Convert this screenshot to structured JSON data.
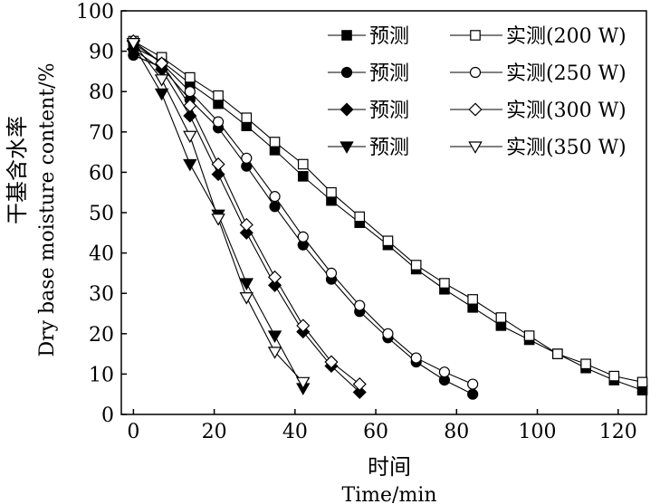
{
  "chart_data": {
    "type": "line",
    "title": "",
    "xlabel_cn": "时间",
    "xlabel": "Time/min",
    "ylabel_cn": "干基含水率",
    "ylabel": "Dry base moisture content/%",
    "xlim": [
      -3,
      127
    ],
    "ylim": [
      0,
      100
    ],
    "xticks": [
      "0",
      "20",
      "40",
      "60",
      "80",
      "100",
      "120"
    ],
    "yticks": [
      "0",
      "10",
      "20",
      "30",
      "40",
      "50",
      "60",
      "70",
      "80",
      "90",
      "100"
    ],
    "grid": false,
    "legend_position": "top-right",
    "series": [
      {
        "name": "预测",
        "kind": "predicted",
        "marker": "square-filled",
        "x": [
          0,
          7,
          14,
          21,
          28,
          35,
          42,
          49,
          56,
          63,
          70,
          77,
          84,
          91,
          98,
          105,
          112,
          119,
          126
        ],
        "y": [
          91,
          87.5,
          82,
          77,
          71.5,
          65.5,
          59,
          53,
          47.5,
          42,
          36,
          31,
          26.5,
          22,
          18.5,
          15,
          11.5,
          8.5,
          6
        ]
      },
      {
        "name": "实测(200 W)",
        "kind": "measured",
        "marker": "square-open",
        "x": [
          0,
          7,
          14,
          21,
          28,
          35,
          42,
          49,
          56,
          63,
          70,
          77,
          84,
          91,
          98,
          105,
          112,
          119,
          126
        ],
        "y": [
          92.5,
          88.5,
          83.5,
          79,
          73.5,
          67.5,
          62,
          55,
          49,
          43,
          37,
          32.5,
          28.5,
          24,
          19.5,
          15,
          12.5,
          9.5,
          8
        ]
      },
      {
        "name": "预测",
        "kind": "predicted",
        "marker": "circle-filled",
        "x": [
          0,
          7,
          14,
          21,
          28,
          35,
          42,
          49,
          56,
          63,
          70,
          77,
          84
        ],
        "y": [
          89,
          86,
          78,
          71,
          61.5,
          51.5,
          42,
          33.5,
          25.5,
          19,
          13,
          8.5,
          5
        ]
      },
      {
        "name": "实测(250 W)",
        "kind": "measured",
        "marker": "circle-open",
        "x": [
          0,
          7,
          14,
          21,
          28,
          35,
          42,
          49,
          56,
          63,
          70,
          77,
          84
        ],
        "y": [
          92,
          87,
          80,
          72.5,
          63.5,
          54,
          44,
          35,
          27,
          20,
          14,
          10.5,
          7.5
        ]
      },
      {
        "name": "预测",
        "kind": "predicted",
        "marker": "diamond-filled",
        "x": [
          0,
          7,
          14,
          21,
          28,
          35,
          42,
          49,
          56
        ],
        "y": [
          90.5,
          85.5,
          74,
          59.5,
          45,
          32,
          20.5,
          12,
          5.5
        ]
      },
      {
        "name": "实测(300 W)",
        "kind": "measured",
        "marker": "diamond-open",
        "x": [
          0,
          7,
          14,
          21,
          28,
          35,
          42,
          49,
          56
        ],
        "y": [
          92.5,
          87,
          76.5,
          62,
          47,
          34,
          22,
          13,
          7.5
        ]
      },
      {
        "name": "预测",
        "kind": "predicted",
        "marker": "triangle-down-filled",
        "x": [
          0,
          7,
          14,
          21,
          28,
          35,
          42
        ],
        "y": [
          91.5,
          79.5,
          62,
          49.5,
          32.5,
          19.5,
          6.5
        ]
      },
      {
        "name": "实测(350 W)",
        "kind": "measured",
        "marker": "triangle-down-open",
        "x": [
          0,
          7,
          14,
          21,
          28,
          35,
          42
        ],
        "y": [
          92,
          83,
          69,
          48.5,
          29,
          15.5,
          8
        ]
      }
    ]
  }
}
